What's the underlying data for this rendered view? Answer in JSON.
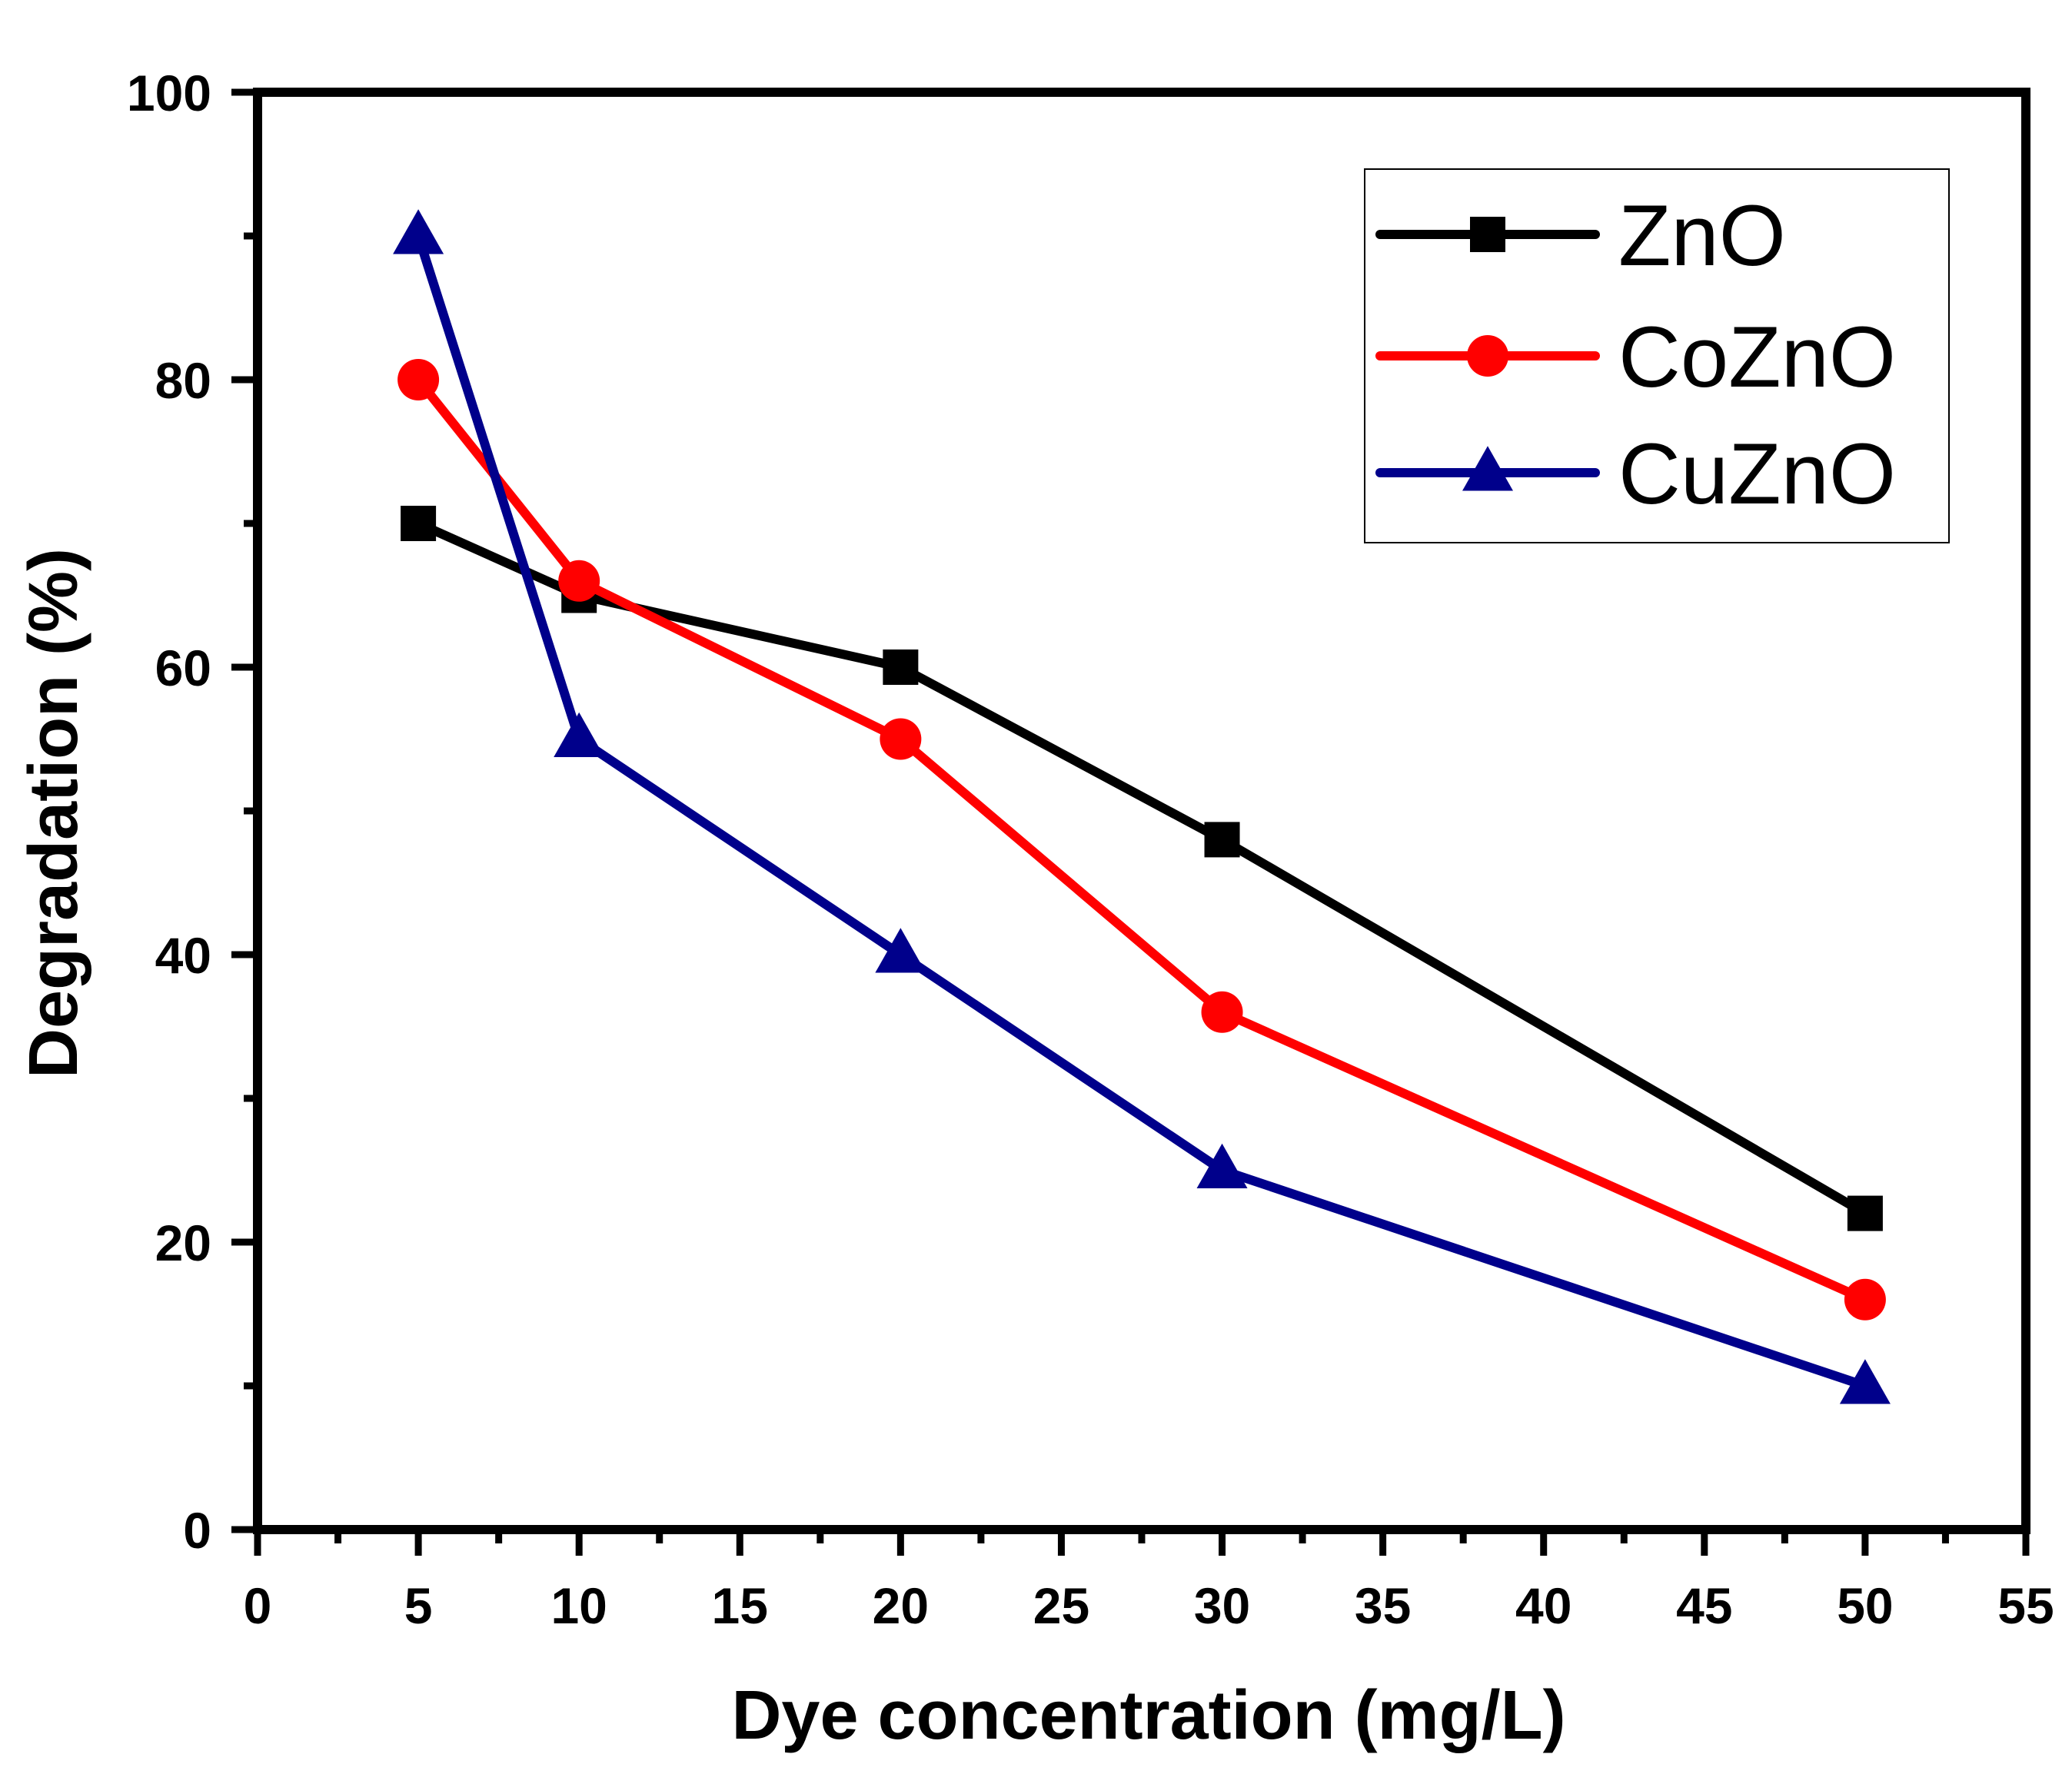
{
  "chart_data": {
    "type": "line",
    "title": "",
    "xlabel": "Dye concentration (mg/L)",
    "ylabel": "Degradation (%)",
    "xlim": [
      0,
      55
    ],
    "ylim": [
      0,
      100
    ],
    "xticks": [
      "0",
      "5",
      "10",
      "15",
      "20",
      "25",
      "30",
      "35",
      "40",
      "45",
      "50",
      "55"
    ],
    "yticks": [
      "0",
      "20",
      "40",
      "60",
      "80",
      "100"
    ],
    "x": [
      5,
      10,
      20,
      30,
      50
    ],
    "series": [
      {
        "name": "ZnO",
        "values": [
          70,
          65,
          60,
          48,
          22
        ],
        "color": "#000000",
        "marker": "square"
      },
      {
        "name": "CoZnO",
        "values": [
          80,
          66,
          55,
          36,
          16
        ],
        "color": "#ff0000",
        "marker": "circle"
      },
      {
        "name": "CuZnO",
        "values": [
          90,
          55,
          40,
          25,
          10
        ],
        "color": "#00008b",
        "marker": "triangle"
      }
    ],
    "legend_position": "top-right",
    "grid": false
  }
}
